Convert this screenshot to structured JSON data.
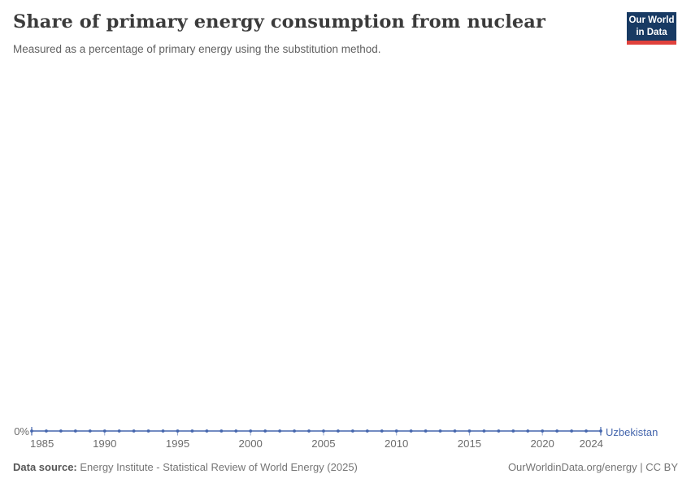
{
  "header": {
    "title": "Share of primary energy consumption from nuclear",
    "subtitle": "Measured as a percentage of primary energy using the substitution method.",
    "logo": {
      "line1": "Our World",
      "line2": "in Data",
      "bg_color": "#183a63",
      "accent_color": "#e0413c"
    }
  },
  "chart_data": {
    "type": "line",
    "title": "Share of primary energy consumption from nuclear",
    "subtitle": "Measured as a percentage of primary energy using the substitution method.",
    "xlabel": "",
    "ylabel": "",
    "xlim": [
      1985,
      2024
    ],
    "ylim": [
      0,
      0
    ],
    "grid": false,
    "legend_position": "end-of-line",
    "x_ticks": [
      1985,
      1990,
      1995,
      2000,
      2005,
      2010,
      2015,
      2020,
      2024
    ],
    "y_ticks": [
      "0%"
    ],
    "series": [
      {
        "name": "Uzbekistan",
        "color": "#4566ad",
        "x": [
          1985,
          1986,
          1987,
          1988,
          1989,
          1990,
          1991,
          1992,
          1993,
          1994,
          1995,
          1996,
          1997,
          1998,
          1999,
          2000,
          2001,
          2002,
          2003,
          2004,
          2005,
          2006,
          2007,
          2008,
          2009,
          2010,
          2011,
          2012,
          2013,
          2014,
          2015,
          2016,
          2017,
          2018,
          2019,
          2020,
          2021,
          2022,
          2023,
          2024
        ],
        "values": [
          0,
          0,
          0,
          0,
          0,
          0,
          0,
          0,
          0,
          0,
          0,
          0,
          0,
          0,
          0,
          0,
          0,
          0,
          0,
          0,
          0,
          0,
          0,
          0,
          0,
          0,
          0,
          0,
          0,
          0,
          0,
          0,
          0,
          0,
          0,
          0,
          0,
          0,
          0,
          0
        ],
        "unit": "%"
      }
    ]
  },
  "footer": {
    "datasource_label": "Data source:",
    "datasource_text": " Energy Institute - Statistical Review of World Energy (2025)",
    "credit": "OurWorldinData.org/energy | CC BY"
  }
}
